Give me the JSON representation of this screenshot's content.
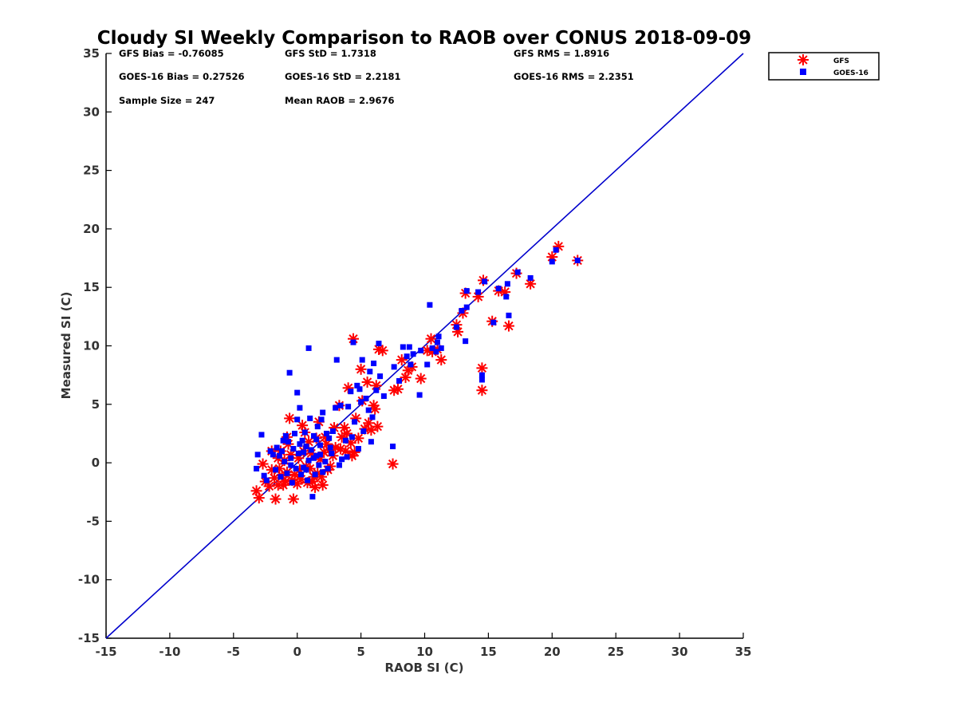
{
  "chart_data": {
    "type": "scatter",
    "title": "Cloudy SI Weekly Comparison to RAOB over CONUS 2018-09-09",
    "xlabel": "RAOB SI (C)",
    "ylabel": "Measured SI (C)",
    "xlim": [
      -15,
      35
    ],
    "ylim": [
      -15,
      35
    ],
    "xticks": [
      -15,
      -10,
      -5,
      0,
      5,
      10,
      15,
      20,
      25,
      30,
      35
    ],
    "yticks": [
      -15,
      -10,
      -5,
      0,
      5,
      10,
      15,
      20,
      25,
      30,
      35
    ],
    "xtick_labels": [
      "-15",
      "-10",
      "-5",
      "0",
      "5",
      "10",
      "15",
      "20",
      "25",
      "30",
      "35"
    ],
    "ytick_labels": [
      "-15",
      "-10",
      "-5",
      "0",
      "5",
      "10",
      "15",
      "20",
      "25",
      "30",
      "35"
    ],
    "grid": false,
    "reference_line": {
      "x": [
        -15,
        35
      ],
      "y": [
        -15,
        35
      ],
      "color": "#0000cc"
    },
    "legend_position": "top-right outside",
    "stats": [
      "GFS Bias = -0.76085",
      "GFS StD = 1.7318",
      "GFS RMS = 1.8916",
      "GOES-16 Bias = 0.27526",
      "GOES-16 StD = 2.2181",
      "GOES-16 RMS = 2.2351",
      "Sample Size = 247",
      "Mean RAOB = 2.9676"
    ],
    "series": [
      {
        "name": "GFS",
        "marker": "asterisk",
        "color": "#ff0000",
        "points": [
          [
            22.0,
            17.3
          ],
          [
            20.5,
            18.5
          ],
          [
            20.0,
            17.6
          ],
          [
            18.3,
            15.3
          ],
          [
            17.2,
            16.2
          ],
          [
            16.6,
            11.7
          ],
          [
            16.3,
            14.6
          ],
          [
            15.8,
            14.7
          ],
          [
            15.3,
            12.1
          ],
          [
            14.6,
            15.6
          ],
          [
            14.5,
            8.1
          ],
          [
            14.5,
            6.2
          ],
          [
            14.2,
            14.2
          ],
          [
            13.2,
            14.5
          ],
          [
            13.0,
            12.8
          ],
          [
            12.6,
            11.2
          ],
          [
            12.5,
            11.8
          ],
          [
            11.3,
            8.8
          ],
          [
            11.0,
            9.7
          ],
          [
            10.6,
            9.5
          ],
          [
            10.5,
            10.6
          ],
          [
            10.2,
            9.6
          ],
          [
            9.7,
            7.2
          ],
          [
            9.0,
            8.2
          ],
          [
            8.7,
            7.9
          ],
          [
            8.5,
            7.3
          ],
          [
            8.2,
            8.8
          ],
          [
            7.9,
            6.3
          ],
          [
            7.6,
            6.2
          ],
          [
            7.5,
            -0.1
          ],
          [
            6.7,
            9.6
          ],
          [
            6.4,
            9.7
          ],
          [
            6.3,
            3.1
          ],
          [
            6.2,
            6.6
          ],
          [
            6.1,
            4.6
          ],
          [
            6.0,
            4.9
          ],
          [
            5.8,
            2.8
          ],
          [
            5.6,
            3.4
          ],
          [
            5.3,
            2.9
          ],
          [
            5.1,
            5.3
          ],
          [
            5.0,
            8.0
          ],
          [
            4.8,
            2.1
          ],
          [
            4.6,
            3.8
          ],
          [
            4.5,
            0.9
          ],
          [
            4.4,
            10.6
          ],
          [
            4.3,
            0.6
          ],
          [
            4.0,
            6.4
          ],
          [
            3.9,
            2.5
          ],
          [
            3.8,
            1.0
          ],
          [
            3.7,
            3.0
          ],
          [
            3.5,
            2.2
          ],
          [
            3.3,
            4.9
          ],
          [
            3.0,
            1.3
          ],
          [
            2.9,
            3.0
          ],
          [
            2.8,
            0.6
          ],
          [
            2.6,
            -0.3
          ],
          [
            2.4,
            -0.6
          ],
          [
            2.3,
            1.6
          ],
          [
            2.2,
            2.2
          ],
          [
            2.0,
            -1.9
          ],
          [
            1.9,
            -1.2
          ],
          [
            1.8,
            0.3
          ],
          [
            1.6,
            -0.9
          ],
          [
            1.5,
            2.1
          ],
          [
            1.4,
            -2.1
          ],
          [
            1.3,
            -1.2
          ],
          [
            1.2,
            -1.6
          ],
          [
            1.1,
            0.8
          ],
          [
            1.0,
            -0.5
          ],
          [
            0.9,
            1.8
          ],
          [
            0.8,
            -1.7
          ],
          [
            0.7,
            -0.3
          ],
          [
            0.6,
            2.6
          ],
          [
            0.5,
            1.0
          ],
          [
            0.3,
            -1.4
          ],
          [
            0.2,
            -0.6
          ],
          [
            0.1,
            0.4
          ],
          [
            0.0,
            -1.8
          ],
          [
            -0.2,
            -1.0
          ],
          [
            -0.3,
            -3.1
          ],
          [
            -0.4,
            -1.5
          ],
          [
            -0.5,
            0.7
          ],
          [
            -0.6,
            3.8
          ],
          [
            -0.7,
            1.6
          ],
          [
            -0.8,
            -0.8
          ],
          [
            -0.9,
            -1.6
          ],
          [
            -1.0,
            0.2
          ],
          [
            -1.1,
            -1.9
          ],
          [
            -1.2,
            -1.1
          ],
          [
            -1.3,
            1.0
          ],
          [
            -1.4,
            -0.5
          ],
          [
            -1.5,
            -1.9
          ],
          [
            -1.7,
            -3.1
          ],
          [
            -1.8,
            -1.3
          ],
          [
            -2.0,
            -0.6
          ],
          [
            -2.2,
            -2.0
          ],
          [
            -2.5,
            -1.6
          ],
          [
            -2.7,
            -0.1
          ],
          [
            -3.0,
            -3.0
          ],
          [
            -3.2,
            -2.4
          ],
          [
            -2.0,
            1.0
          ],
          [
            -0.8,
            2.2
          ],
          [
            1.7,
            3.5
          ],
          [
            2.5,
            1.1
          ],
          [
            3.4,
            1.2
          ],
          [
            4.2,
            1.7
          ],
          [
            0.4,
            3.2
          ],
          [
            -1.5,
            0.4
          ],
          [
            2.1,
            0.9
          ],
          [
            5.5,
            6.9
          ]
        ]
      },
      {
        "name": "GOES-16",
        "marker": "square",
        "color": "#0000ff",
        "points": [
          [
            22.0,
            17.3
          ],
          [
            20.3,
            18.2
          ],
          [
            20.0,
            17.2
          ],
          [
            18.3,
            15.8
          ],
          [
            17.3,
            16.3
          ],
          [
            16.6,
            12.6
          ],
          [
            16.5,
            15.3
          ],
          [
            16.4,
            14.2
          ],
          [
            15.8,
            14.9
          ],
          [
            15.4,
            12.0
          ],
          [
            14.7,
            15.5
          ],
          [
            14.5,
            7.5
          ],
          [
            14.5,
            7.1
          ],
          [
            14.2,
            14.6
          ],
          [
            13.3,
            14.7
          ],
          [
            13.3,
            13.3
          ],
          [
            13.2,
            10.4
          ],
          [
            12.9,
            13.0
          ],
          [
            12.5,
            11.6
          ],
          [
            11.3,
            9.8
          ],
          [
            11.1,
            10.8
          ],
          [
            11.0,
            10.3
          ],
          [
            10.9,
            9.5
          ],
          [
            10.6,
            9.8
          ],
          [
            10.4,
            13.5
          ],
          [
            10.2,
            8.4
          ],
          [
            9.7,
            9.6
          ],
          [
            9.6,
            5.8
          ],
          [
            9.1,
            9.3
          ],
          [
            8.9,
            8.4
          ],
          [
            8.8,
            9.9
          ],
          [
            8.6,
            9.1
          ],
          [
            8.3,
            9.9
          ],
          [
            8.0,
            7.0
          ],
          [
            7.6,
            8.2
          ],
          [
            7.5,
            1.4
          ],
          [
            6.8,
            5.7
          ],
          [
            6.5,
            7.4
          ],
          [
            6.4,
            10.2
          ],
          [
            6.2,
            6.2
          ],
          [
            6.0,
            8.5
          ],
          [
            5.9,
            3.9
          ],
          [
            5.8,
            1.8
          ],
          [
            5.7,
            7.8
          ],
          [
            5.6,
            4.5
          ],
          [
            5.4,
            5.5
          ],
          [
            5.2,
            2.7
          ],
          [
            5.1,
            8.8
          ],
          [
            5.0,
            5.2
          ],
          [
            4.9,
            6.3
          ],
          [
            4.8,
            1.2
          ],
          [
            4.7,
            6.6
          ],
          [
            4.5,
            3.5
          ],
          [
            4.4,
            10.3
          ],
          [
            4.3,
            2.2
          ],
          [
            4.2,
            6.1
          ],
          [
            4.0,
            4.8
          ],
          [
            3.9,
            0.5
          ],
          [
            3.8,
            1.9
          ],
          [
            3.5,
            0.3
          ],
          [
            3.4,
            4.9
          ],
          [
            3.3,
            -0.2
          ],
          [
            3.1,
            8.8
          ],
          [
            3.0,
            4.7
          ],
          [
            2.8,
            2.7
          ],
          [
            2.7,
            0.8
          ],
          [
            2.5,
            2.1
          ],
          [
            2.4,
            -0.5
          ],
          [
            2.3,
            2.5
          ],
          [
            2.2,
            0.1
          ],
          [
            2.0,
            4.3
          ],
          [
            2.0,
            -0.8
          ],
          [
            1.9,
            3.7
          ],
          [
            1.8,
            1.5
          ],
          [
            1.7,
            -0.2
          ],
          [
            1.6,
            3.1
          ],
          [
            1.5,
            0.6
          ],
          [
            1.4,
            -1.0
          ],
          [
            1.3,
            2.3
          ],
          [
            1.2,
            -2.9
          ],
          [
            1.1,
            1.1
          ],
          [
            1.0,
            3.8
          ],
          [
            0.9,
            0.2
          ],
          [
            0.9,
            9.8
          ],
          [
            0.8,
            -1.5
          ],
          [
            0.7,
            1.4
          ],
          [
            0.6,
            2.6
          ],
          [
            0.5,
            -0.4
          ],
          [
            0.4,
            1.9
          ],
          [
            0.3,
            -1.0
          ],
          [
            0.2,
            4.7
          ],
          [
            0.1,
            0.8
          ],
          [
            0.0,
            3.7
          ],
          [
            0.0,
            6.0
          ],
          [
            -0.1,
            -0.5
          ],
          [
            -0.2,
            2.5
          ],
          [
            -0.3,
            1.2
          ],
          [
            -0.4,
            -1.7
          ],
          [
            -0.5,
            0.4
          ],
          [
            -0.6,
            7.7
          ],
          [
            -0.7,
            1.8
          ],
          [
            -0.8,
            -0.9
          ],
          [
            -0.9,
            2.3
          ],
          [
            -1.0,
            0.1
          ],
          [
            -1.2,
            1.0
          ],
          [
            -1.3,
            -1.2
          ],
          [
            -1.4,
            0.6
          ],
          [
            -1.6,
            1.3
          ],
          [
            -1.7,
            -0.6
          ],
          [
            -1.9,
            0.7
          ],
          [
            -2.1,
            1.0
          ],
          [
            -2.4,
            -1.5
          ],
          [
            -2.6,
            -1.1
          ],
          [
            -2.8,
            2.4
          ],
          [
            -3.1,
            0.7
          ],
          [
            -3.2,
            -0.5
          ],
          [
            1.3,
            0.4
          ],
          [
            0.5,
            0.9
          ],
          [
            -0.5,
            -0.2
          ],
          [
            1.8,
            0.7
          ],
          [
            0.2,
            1.6
          ],
          [
            2.6,
            1.3
          ],
          [
            -1.1,
            1.9
          ],
          [
            0.7,
            -0.6
          ],
          [
            1.5,
            2.0
          ]
        ]
      }
    ]
  }
}
